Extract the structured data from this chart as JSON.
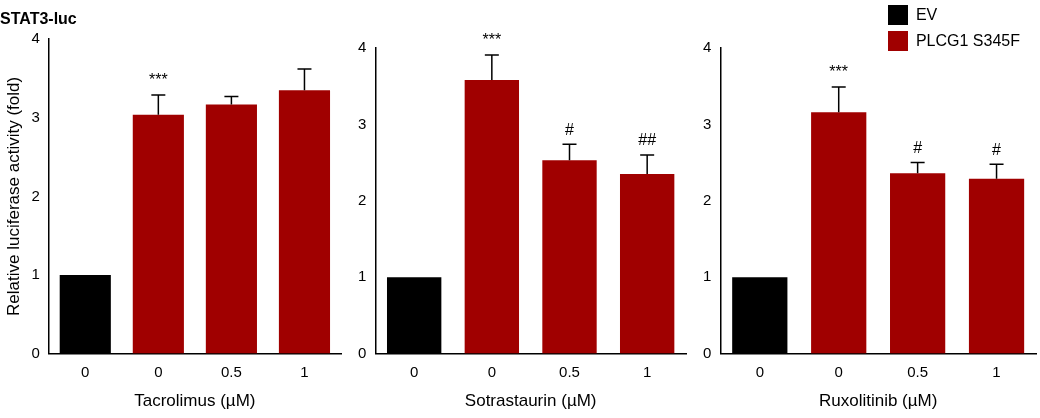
{
  "chart_data": [
    {
      "type": "bar",
      "title": "STAT3-luc",
      "xlabel": "Tacrolimus (µM)",
      "ylabel": "Relative luciferase activity (fold)",
      "categories": [
        "0",
        "0",
        "0.5",
        "1"
      ],
      "ylim": [
        0,
        4
      ],
      "yticks": [
        0,
        1,
        2,
        3,
        4
      ],
      "grid": false,
      "legend": false,
      "series": [
        {
          "color": "#000000",
          "values": [
            1,
            null,
            null,
            null
          ]
        },
        {
          "color": "#a00000",
          "values": [
            null,
            3.04,
            3.17,
            3.35
          ],
          "errors": [
            null,
            [
              3.04,
              3.29
            ],
            [
              3.17,
              3.27
            ],
            [
              3.35,
              3.62
            ]
          ]
        }
      ],
      "annotations": [
        "***"
      ]
    },
    {
      "type": "bar",
      "xlabel": "Sotrastaurin (µM)",
      "categories": [
        "0",
        "0",
        "0.5",
        "1"
      ],
      "ylim": [
        0,
        4
      ],
      "yticks": [
        0,
        1,
        2,
        3,
        4
      ],
      "grid": false,
      "legend": false,
      "series": [
        {
          "color": "#000000",
          "values": [
            1,
            null,
            null,
            null
          ]
        },
        {
          "color": "#a00000",
          "values": [
            null,
            3.58,
            2.53,
            2.35
          ],
          "errors": [
            null,
            [
              3.58,
              3.91
            ],
            [
              2.53,
              2.74
            ],
            [
              2.35,
              2.6
            ]
          ]
        }
      ],
      "annotations": [
        "***",
        {
          "text": "#",
          "x": "0.5",
          "y": 2.74
        },
        {
          "text": "##",
          "x": "1",
          "y": 2.6
        }
      ]
    },
    {
      "type": "bar",
      "xlabel": "Ruxolitinib (µM)",
      "categories": [
        "0",
        "0",
        "0.5",
        "1"
      ],
      "ylim": [
        0,
        4
      ],
      "yticks": [
        0,
        1,
        2,
        3,
        4
      ],
      "grid": false,
      "legend": "top right",
      "series": [
        {
          "name": "EV",
          "color": "#000000",
          "values": [
            1,
            null,
            null,
            null
          ]
        },
        {
          "name": "PLCG1 S345F",
          "color": "#a00000",
          "values": [
            null,
            3.16,
            2.36,
            2.29
          ],
          "errors": [
            null,
            [
              3.16,
              3.49
            ],
            [
              2.36,
              2.5
            ],
            [
              2.29,
              2.48
            ]
          ]
        }
      ],
      "annotations": [
        "***",
        {
          "text": "#",
          "x": "0.5",
          "y": 2.5
        },
        {
          "text": "#",
          "x": "1",
          "y": 2.48
        }
      ]
    }
  ]
}
